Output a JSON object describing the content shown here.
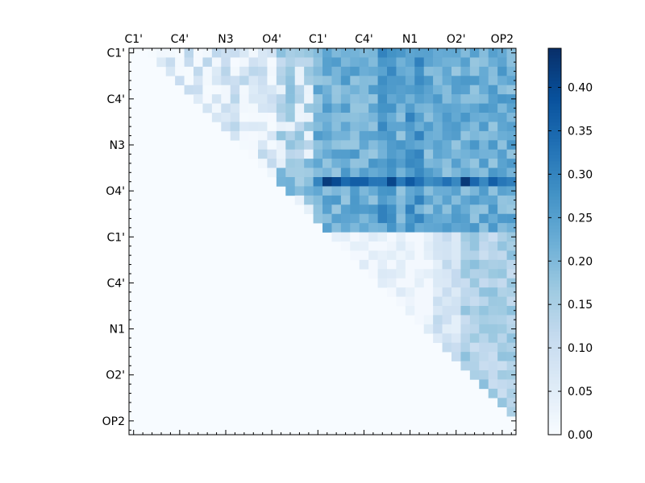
{
  "chart_data": {
    "type": "heatmap",
    "title": "",
    "xlabel": "",
    "ylabel": "",
    "x_tick_labels": [
      "C1'",
      "C4'",
      "N3",
      "O4'",
      "C1'",
      "C4'",
      "N1",
      "O2'",
      "OP2"
    ],
    "y_tick_labels": [
      "C1'",
      "C4'",
      "N3",
      "O4'",
      "C1'",
      "C4'",
      "N1",
      "O2'",
      "OP2"
    ],
    "x_ticks_position": "top",
    "size": 42,
    "upper_triangular": true,
    "colormap": "Blues",
    "colorbar": {
      "min": 0.0,
      "max": 0.445,
      "ticks": [
        "0.00",
        "0.05",
        "0.10",
        "0.15",
        "0.20",
        "0.25",
        "0.30",
        "0.35",
        "0.40"
      ],
      "tick_values": [
        0.0,
        0.05,
        0.1,
        0.15,
        0.2,
        0.25,
        0.3,
        0.35,
        0.4
      ]
    },
    "grid": false
  }
}
